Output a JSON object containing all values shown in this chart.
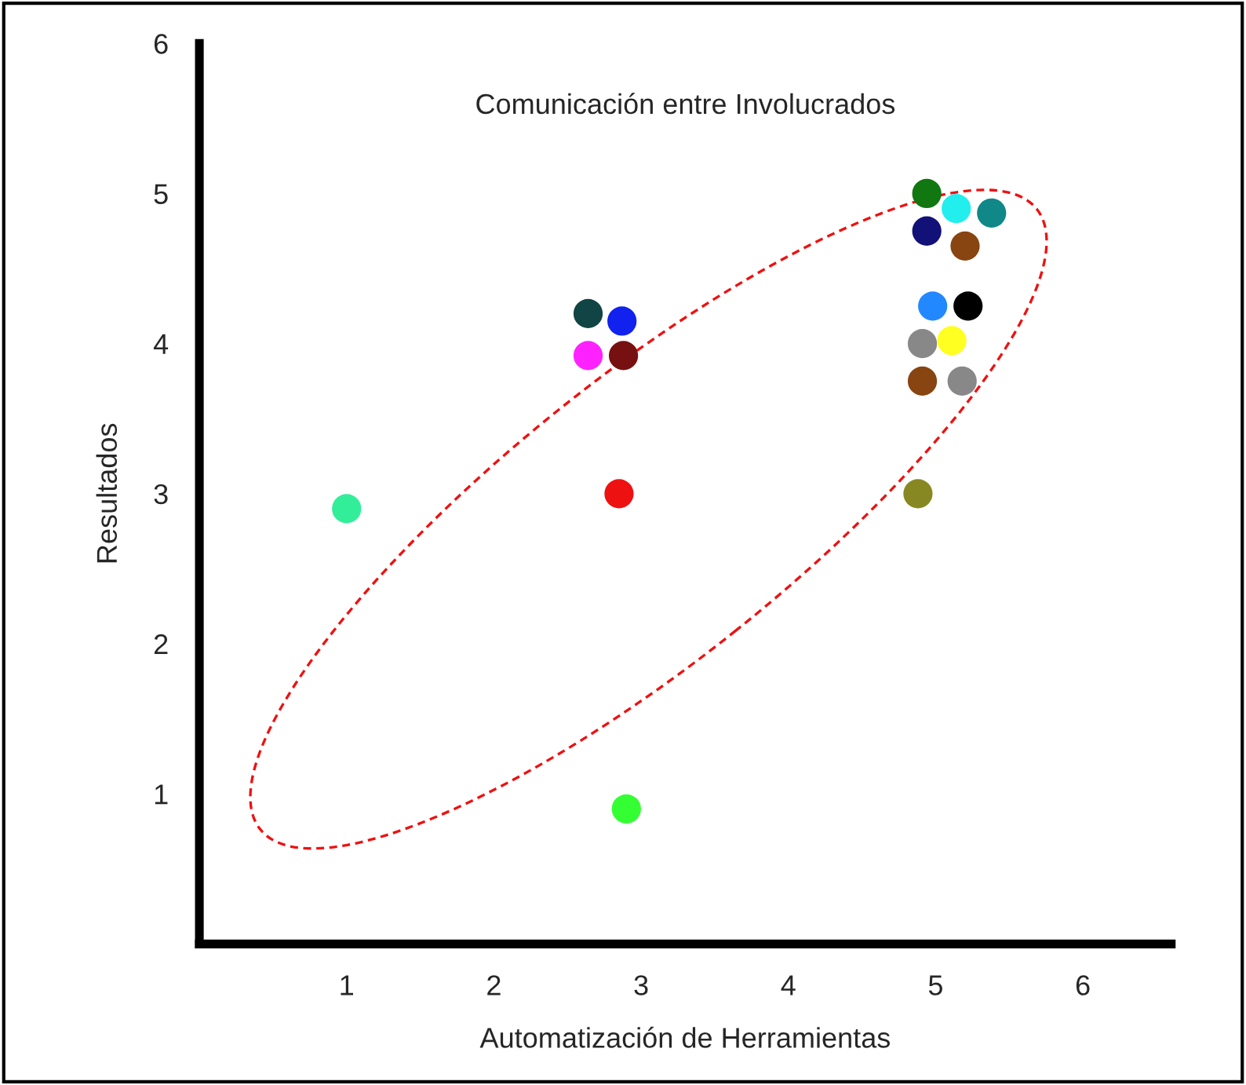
{
  "chart_data": {
    "type": "scatter",
    "annotations": [
      "Comunicación entre Involucrados"
    ],
    "xlabel": "Automatización de Herramientas",
    "ylabel": "Resultados",
    "x": [
      1.0,
      2.9,
      2.85,
      2.64,
      2.87,
      2.64,
      2.88,
      4.94,
      5.14,
      5.38,
      4.94,
      5.2,
      4.98,
      5.22,
      4.91,
      5.11,
      4.91,
      5.18,
      4.88
    ],
    "values": [
      2.9,
      0.9,
      3.0,
      4.2,
      4.15,
      3.92,
      3.92,
      5.0,
      4.9,
      4.87,
      4.75,
      4.65,
      4.25,
      4.25,
      4.0,
      4.02,
      3.75,
      3.75,
      3.0
    ],
    "colors": [
      "#33ee99",
      "#33ff33",
      "#ee1111",
      "#114444",
      "#1122ee",
      "#ff22ff",
      "#771111",
      "#117711",
      "#22eeee",
      "#118888",
      "#111177",
      "#884411",
      "#2288ff",
      "#000000",
      "#888888",
      "#ffff22",
      "#884411",
      "#888888",
      "#888822"
    ],
    "marker": "circle",
    "xlim": [
      0,
      6.6
    ],
    "ylim": [
      0,
      6
    ],
    "xticks": [
      1,
      2,
      3,
      4,
      5,
      6
    ],
    "yticks": [
      1,
      2,
      3,
      4,
      5,
      6
    ],
    "grid": false,
    "legend": false
  }
}
